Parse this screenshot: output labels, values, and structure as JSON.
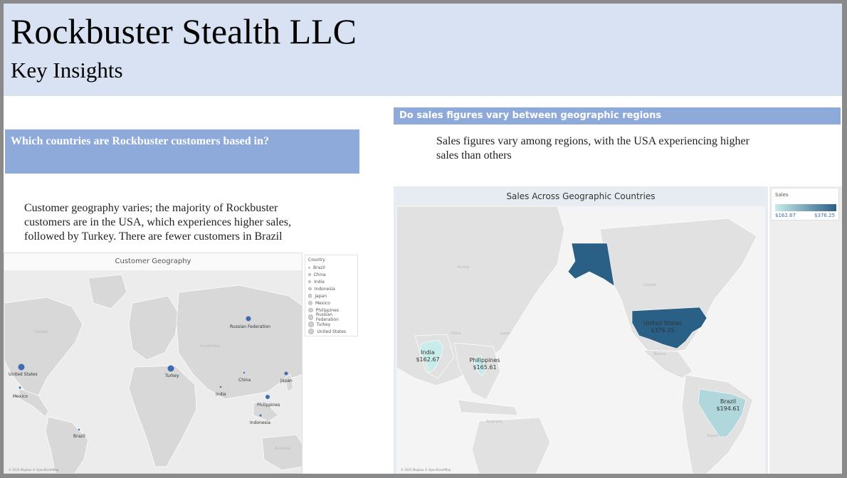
{
  "header": {
    "title": "Rockbuster Stealth LLC",
    "subtitle": "Key Insights"
  },
  "left": {
    "question": "Which countries are Rockbuster customers based in?",
    "text": "Customer geography varies; the majority of Rockbuster customers are in the USA, which experiences higher sales, followed by Turkey. There are fewer customers in Brazil",
    "map": {
      "title": "Customer Geography",
      "attribution": "© 2023 Mapbox © OpenStreetMap",
      "legend_title": "Country",
      "legend_items": [
        "Brazil",
        "China",
        "India",
        "Indonesia",
        "Japan",
        "Mexico",
        "Philippines",
        "Russian Federation",
        "Turkey",
        "United States"
      ],
      "points": [
        {
          "country": "United States",
          "label": "United States"
        },
        {
          "country": "Mexico",
          "label": "Mexico"
        },
        {
          "country": "Brazil",
          "label": "Brazil"
        },
        {
          "country": "Turkey",
          "label": "Turkey"
        },
        {
          "country": "Russian Federation",
          "label": "Russian Federation"
        },
        {
          "country": "China",
          "label": "China"
        },
        {
          "country": "India",
          "label": "India"
        },
        {
          "country": "Japan",
          "label": "Japan"
        },
        {
          "country": "Philippines",
          "label": "Philippines"
        },
        {
          "country": "Indonesia",
          "label": "Indonesia"
        }
      ]
    }
  },
  "right": {
    "question": "Do sales figures vary between geographic regions",
    "text": "Sales figures vary among regions, with the USA experiencing higher sales than others",
    "map": {
      "title": "Sales Across Geographic Countries",
      "attribution": "© 2023 Mapbox © OpenStreetMap",
      "legend_title": "Sales",
      "legend_min": "$162.67",
      "legend_max": "$376.25",
      "colors": {
        "low": "#c8ecea",
        "high": "#2a5f86"
      },
      "regions": [
        {
          "country": "United States",
          "name": "United States",
          "sales": "$376.25",
          "value": 376.25
        },
        {
          "country": "Brazil",
          "name": "Brazil",
          "sales": "$194.61",
          "value": 194.61
        },
        {
          "country": "India",
          "name": "India",
          "sales": "$162.67",
          "value": 162.67
        },
        {
          "country": "Philippines",
          "name": "Philippines",
          "sales": "$165.61",
          "value": 165.61
        }
      ]
    }
  }
}
